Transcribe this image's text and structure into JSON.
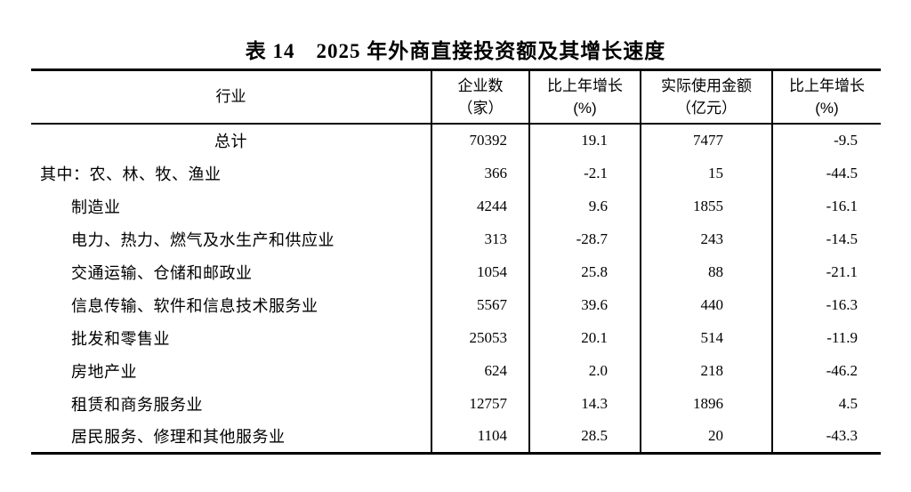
{
  "title": "表 14　2025 年外商直接投资额及其增长速度",
  "table": {
    "columns": [
      {
        "label": "行业",
        "unit": ""
      },
      {
        "label": "企业数",
        "unit": "（家）"
      },
      {
        "label": "比上年增长",
        "unit": "(%)"
      },
      {
        "label": "实际使用金额",
        "unit": "（亿元）"
      },
      {
        "label": "比上年增长",
        "unit": "(%)"
      }
    ],
    "rows": [
      {
        "industry": "总计",
        "enterprises": "70392",
        "enterprise_growth": "19.1",
        "amount": "7477",
        "amount_growth": "-9.5"
      },
      {
        "industry": "其中：农、林、牧、渔业",
        "enterprises": "366",
        "enterprise_growth": "-2.1",
        "amount": "15",
        "amount_growth": "-44.5"
      },
      {
        "industry": "制造业",
        "enterprises": "4244",
        "enterprise_growth": "9.6",
        "amount": "1855",
        "amount_growth": "-16.1"
      },
      {
        "industry": "电力、热力、燃气及水生产和供应业",
        "enterprises": "313",
        "enterprise_growth": "-28.7",
        "amount": "243",
        "amount_growth": "-14.5"
      },
      {
        "industry": "交通运输、仓储和邮政业",
        "enterprises": "1054",
        "enterprise_growth": "25.8",
        "amount": "88",
        "amount_growth": "-21.1"
      },
      {
        "industry": "信息传输、软件和信息技术服务业",
        "enterprises": "5567",
        "enterprise_growth": "39.6",
        "amount": "440",
        "amount_growth": "-16.3"
      },
      {
        "industry": "批发和零售业",
        "enterprises": "25053",
        "enterprise_growth": "20.1",
        "amount": "514",
        "amount_growth": "-11.9"
      },
      {
        "industry": "房地产业",
        "enterprises": "624",
        "enterprise_growth": "2.0",
        "amount": "218",
        "amount_growth": "-46.2"
      },
      {
        "industry": "租赁和商务服务业",
        "enterprises": "12757",
        "enterprise_growth": "14.3",
        "amount": "1896",
        "amount_growth": "4.5"
      },
      {
        "industry": "居民服务、修理和其他服务业",
        "enterprises": "1104",
        "enterprise_growth": "28.5",
        "amount": "20",
        "amount_growth": "-43.3"
      }
    ]
  }
}
